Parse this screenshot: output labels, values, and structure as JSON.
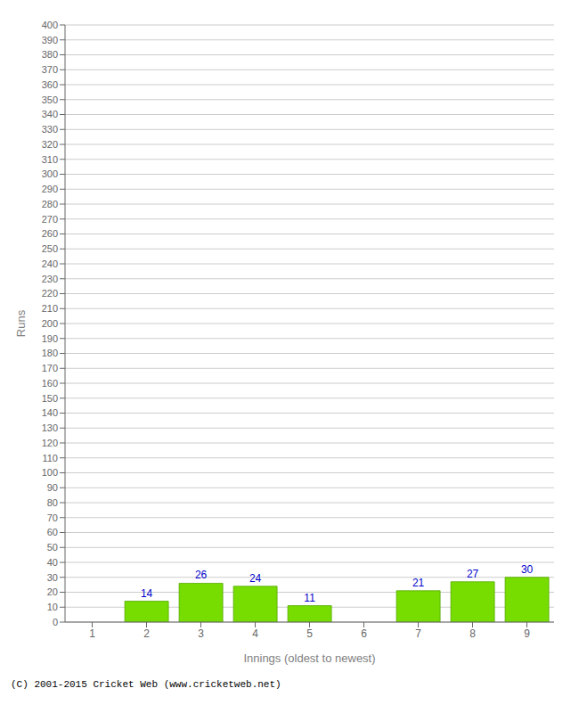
{
  "chart_data": {
    "type": "bar",
    "categories": [
      "1",
      "2",
      "3",
      "4",
      "5",
      "6",
      "7",
      "8",
      "9"
    ],
    "values": [
      0,
      14,
      26,
      24,
      11,
      0,
      21,
      27,
      30
    ],
    "color": "#77dd00",
    "xlabel": "Innings (oldest to newest)",
    "ylabel": "Runs",
    "ylim": [
      0,
      400
    ],
    "yticks": [
      0,
      10,
      20,
      30,
      40,
      50,
      60,
      70,
      80,
      90,
      100,
      110,
      120,
      130,
      140,
      150,
      160,
      170,
      180,
      190,
      200,
      210,
      220,
      230,
      240,
      250,
      260,
      270,
      280,
      290,
      300,
      310,
      320,
      330,
      340,
      350,
      360,
      370,
      380,
      390,
      400
    ],
    "grid": true,
    "data_labels": true,
    "annotations": [
      "(C) 2001-2015 Cricket Web (www.cricketweb.net)"
    ]
  }
}
